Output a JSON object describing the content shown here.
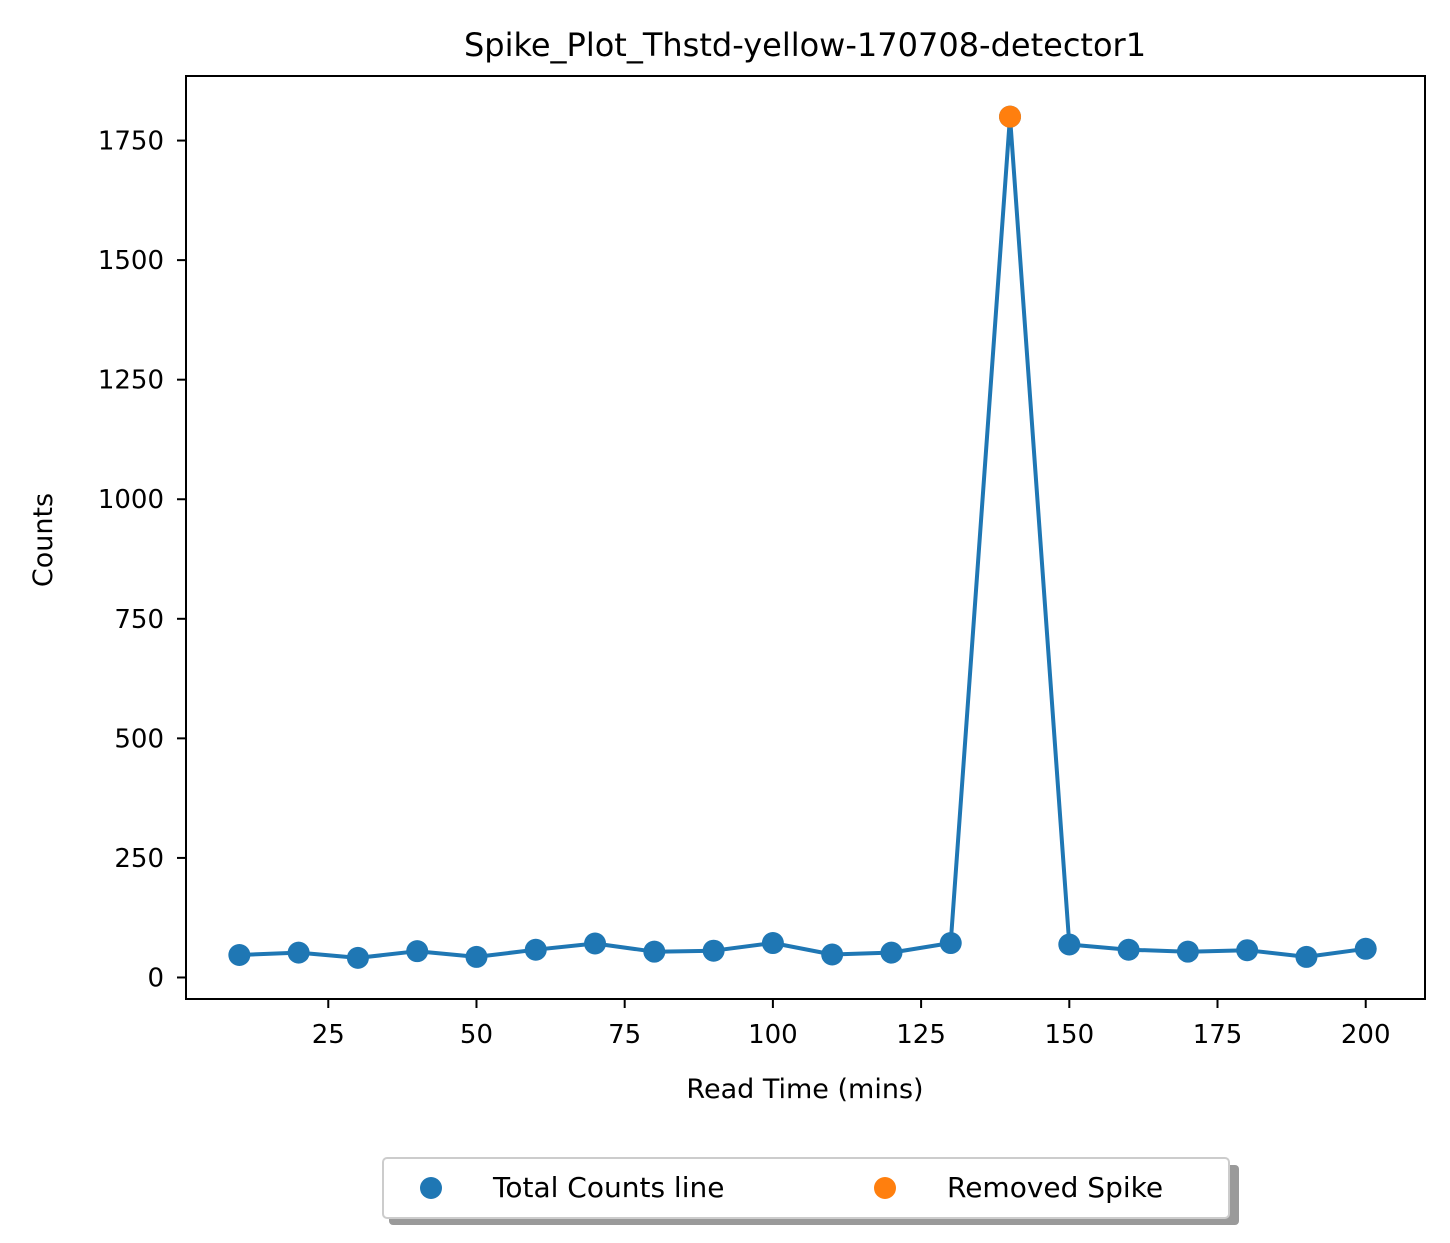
{
  "chart_data": {
    "type": "line",
    "title": "Spike_Plot_Thstd-yellow-170708-detector1",
    "xlabel": "Read Time (mins)",
    "ylabel": "Counts",
    "xlim": [
      1,
      210
    ],
    "ylim": [
      -45,
      1885
    ],
    "x_ticks": [
      25,
      50,
      75,
      100,
      125,
      150,
      175,
      200
    ],
    "y_ticks": [
      0,
      250,
      500,
      750,
      1000,
      1250,
      1500,
      1750
    ],
    "grid": false,
    "legend_position": "bottom-center (below plot)",
    "series": [
      {
        "name": "Total Counts line",
        "color": "#1f77b4",
        "x": [
          10,
          20,
          30,
          40,
          50,
          60,
          70,
          80,
          90,
          100,
          110,
          120,
          130,
          140,
          150,
          160,
          170,
          180,
          190,
          200
        ],
        "y": [
          47,
          52,
          41,
          55,
          43,
          58,
          71,
          54,
          56,
          72,
          48,
          52,
          72,
          1800,
          69,
          58,
          54,
          57,
          43,
          60
        ]
      },
      {
        "name": "Removed Spike",
        "color": "#ff7f0e",
        "x": [
          140
        ],
        "y": [
          1800
        ]
      }
    ]
  }
}
